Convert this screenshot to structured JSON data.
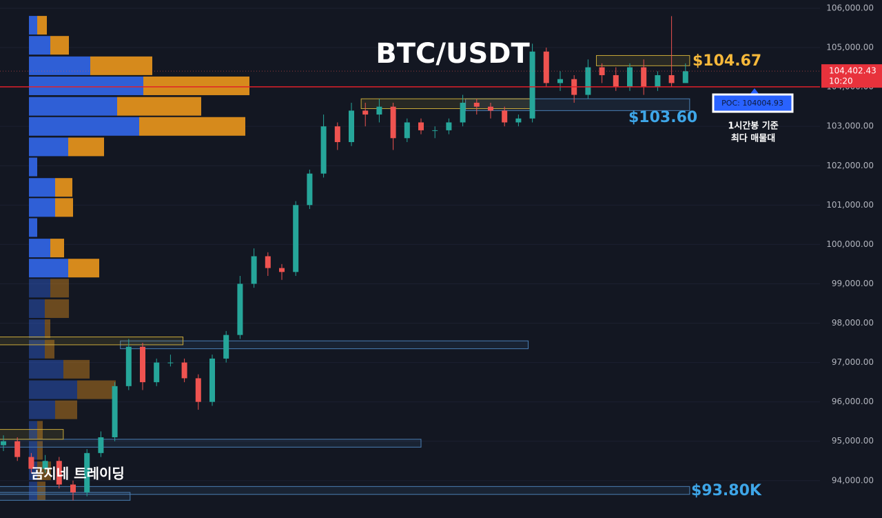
{
  "chart_data": {
    "type": "candlestick",
    "title": "BTC/USDT",
    "watermark": "곰지네 트레이딩",
    "up_color": "#26a69a",
    "down_color": "#ef5350",
    "ylim": [
      93050,
      106210
    ],
    "yticks": [
      {
        "value": 94000,
        "label": "94,000.00"
      },
      {
        "value": 95000,
        "label": "95,000.00"
      },
      {
        "value": 96000,
        "label": "96,000.00"
      },
      {
        "value": 97000,
        "label": "97,000.00"
      },
      {
        "value": 98000,
        "label": "98,000.00"
      },
      {
        "value": 99000,
        "label": "99,000.00"
      },
      {
        "value": 100000,
        "label": "100,000.00"
      },
      {
        "value": 101000,
        "label": "101,000.00"
      },
      {
        "value": 102000,
        "label": "102,000.00"
      },
      {
        "value": 103000,
        "label": "103,000.00"
      },
      {
        "value": 104000,
        "label": "104,000.00"
      },
      {
        "value": 105000,
        "label": "105,000.00"
      },
      {
        "value": 106000,
        "label": "106,000.00"
      }
    ],
    "grid": true,
    "open": [
      94900,
      95000,
      94600,
      94300,
      94500,
      93900,
      93700,
      94700,
      95100,
      96400,
      97400,
      96500,
      97000,
      97000,
      96600,
      96000,
      97100,
      97700,
      99000,
      99700,
      99400,
      99300,
      101000,
      101800,
      103000,
      102600,
      103400,
      103300,
      103500,
      102700,
      103100,
      102900,
      102900,
      103100,
      103600,
      103500,
      103400,
      103100,
      103200,
      104900,
      104100,
      104200,
      103800,
      104500,
      104300,
      104000,
      104500,
      104000,
      104300,
      104100
    ],
    "close": [
      95000,
      94600,
      94300,
      94500,
      93900,
      93700,
      94700,
      95100,
      96400,
      97400,
      96500,
      97000,
      97000,
      96600,
      96000,
      97100,
      97700,
      99000,
      99700,
      99400,
      99300,
      101000,
      101800,
      103000,
      102600,
      103400,
      103300,
      103500,
      102700,
      103100,
      102900,
      102900,
      103100,
      103600,
      103500,
      103400,
      103100,
      103200,
      104900,
      104100,
      104200,
      103800,
      104500,
      104300,
      104000,
      104500,
      104000,
      104300,
      104100,
      104400
    ],
    "high": [
      95150,
      95100,
      94700,
      94650,
      94600,
      94000,
      94800,
      95250,
      96500,
      97600,
      97500,
      97100,
      97200,
      97100,
      96700,
      97200,
      97800,
      99200,
      99900,
      99800,
      99500,
      101100,
      101900,
      103300,
      103100,
      103600,
      103600,
      103700,
      103600,
      103200,
      103200,
      103000,
      103200,
      103800,
      103700,
      103600,
      103500,
      103300,
      105100,
      105000,
      104400,
      104300,
      104700,
      104600,
      104500,
      104600,
      104700,
      104400,
      105800,
      104600
    ],
    "low": [
      94750,
      94500,
      94200,
      94200,
      93800,
      93500,
      93600,
      94600,
      95000,
      96300,
      96300,
      96400,
      96900,
      96500,
      95800,
      95900,
      97000,
      97600,
      98900,
      99200,
      99100,
      99200,
      100900,
      101700,
      102400,
      102500,
      103000,
      103100,
      102400,
      102600,
      102800,
      102700,
      102800,
      103000,
      103300,
      103200,
      103000,
      103000,
      103100,
      104000,
      103900,
      103600,
      103700,
      104100,
      103900,
      103900,
      103800,
      103900,
      104000,
      104200
    ],
    "volume_profile": {
      "prices": [
        105560,
        105050,
        104530,
        104020,
        103500,
        102990,
        102470,
        101960,
        101440,
        100930,
        100420,
        99900,
        99390,
        98880,
        98360,
        97850,
        97330,
        96820,
        96300,
        95790,
        95270,
        94760,
        94240,
        93730
      ],
      "buy": [
        12,
        31,
        89,
        166,
        128,
        160,
        57,
        12,
        38,
        38,
        12,
        31,
        57,
        31,
        23,
        23,
        23,
        50,
        70,
        38,
        12,
        12,
        12,
        12
      ],
      "sell": [
        14,
        27,
        90,
        154,
        122,
        154,
        52,
        0,
        25,
        26,
        0,
        20,
        45,
        27,
        35,
        8,
        14,
        38,
        56,
        32,
        8,
        8,
        20,
        12
      ],
      "buy_color": "#2f5fd6",
      "sell_color": "#d68a1c"
    },
    "zones": [
      {
        "low": 104540,
        "high": 104800,
        "start": 42.6,
        "end": 49.3,
        "color": "#c9a93a"
      },
      {
        "low": 103400,
        "high": 103700,
        "start": 33.2,
        "end": 49.3,
        "color": "#4a7fb5"
      },
      {
        "low": 103450,
        "high": 103700,
        "start": 25.7,
        "end": 37.9,
        "color": "#c9a93a"
      },
      {
        "low": 97350,
        "high": 97550,
        "start": 8.4,
        "end": 37.7,
        "color": "#4a7fb5"
      },
      {
        "low": 97450,
        "high": 97650,
        "start": -0.3,
        "end": 12.9,
        "color": "#c9a93a"
      },
      {
        "low": 94850,
        "high": 95050,
        "start": -0.3,
        "end": 30.0,
        "color": "#4a7fb5"
      },
      {
        "low": 95050,
        "high": 95300,
        "start": -0.3,
        "end": 4.3,
        "color": "#c9a93a"
      },
      {
        "low": 93650,
        "high": 93850,
        "start": -0.3,
        "end": 49.3,
        "color": "#4a7fb5"
      },
      {
        "low": 93500,
        "high": 93700,
        "start": -0.3,
        "end": 9.1,
        "color": "#4a7fb5"
      }
    ],
    "poc": 104004.93,
    "poc_label": "POC: 104004.93",
    "last_price": 104402.43,
    "last_price_label": "104,402.43",
    "time_left": "10:20",
    "annotations": [
      "$104.67",
      "$103.60",
      "$93.80K"
    ],
    "note": [
      "1시간봉 기준",
      "최다 매물대"
    ]
  }
}
